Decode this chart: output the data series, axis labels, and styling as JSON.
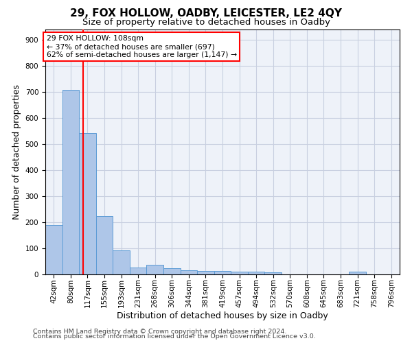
{
  "title": "29, FOX HOLLOW, OADBY, LEICESTER, LE2 4QY",
  "subtitle": "Size of property relative to detached houses in Oadby",
  "xlabel": "Distribution of detached houses by size in Oadby",
  "ylabel": "Number of detached properties",
  "bar_labels": [
    "42sqm",
    "80sqm",
    "117sqm",
    "155sqm",
    "193sqm",
    "231sqm",
    "268sqm",
    "306sqm",
    "344sqm",
    "381sqm",
    "419sqm",
    "457sqm",
    "494sqm",
    "532sqm",
    "570sqm",
    "608sqm",
    "645sqm",
    "683sqm",
    "721sqm",
    "758sqm",
    "796sqm"
  ],
  "bar_values": [
    190,
    706,
    541,
    224,
    91,
    27,
    36,
    24,
    15,
    13,
    12,
    11,
    10,
    8,
    0,
    0,
    0,
    0,
    10,
    0,
    0
  ],
  "bar_color": "#aec6e8",
  "bar_edge_color": "#5b9bd5",
  "red_line_x": 1.73,
  "property_label": "29 FOX HOLLOW: 108sqm",
  "annotation_line1": "← 37% of detached houses are smaller (697)",
  "annotation_line2": "62% of semi-detached houses are larger (1,147) →",
  "annotation_box_color": "white",
  "annotation_box_edge_color": "red",
  "ylim": [
    0,
    940
  ],
  "yticks": [
    0,
    100,
    200,
    300,
    400,
    500,
    600,
    700,
    800,
    900
  ],
  "footer1": "Contains HM Land Registry data © Crown copyright and database right 2024.",
  "footer2": "Contains public sector information licensed under the Open Government Licence v3.0.",
  "bg_color": "#eef2f9",
  "grid_color": "#c8cfe0",
  "title_fontsize": 11,
  "subtitle_fontsize": 9.5,
  "ylabel_fontsize": 9,
  "xlabel_fontsize": 9,
  "tick_fontsize": 7.5,
  "footer_fontsize": 6.8,
  "annotation_fontsize": 7.8
}
